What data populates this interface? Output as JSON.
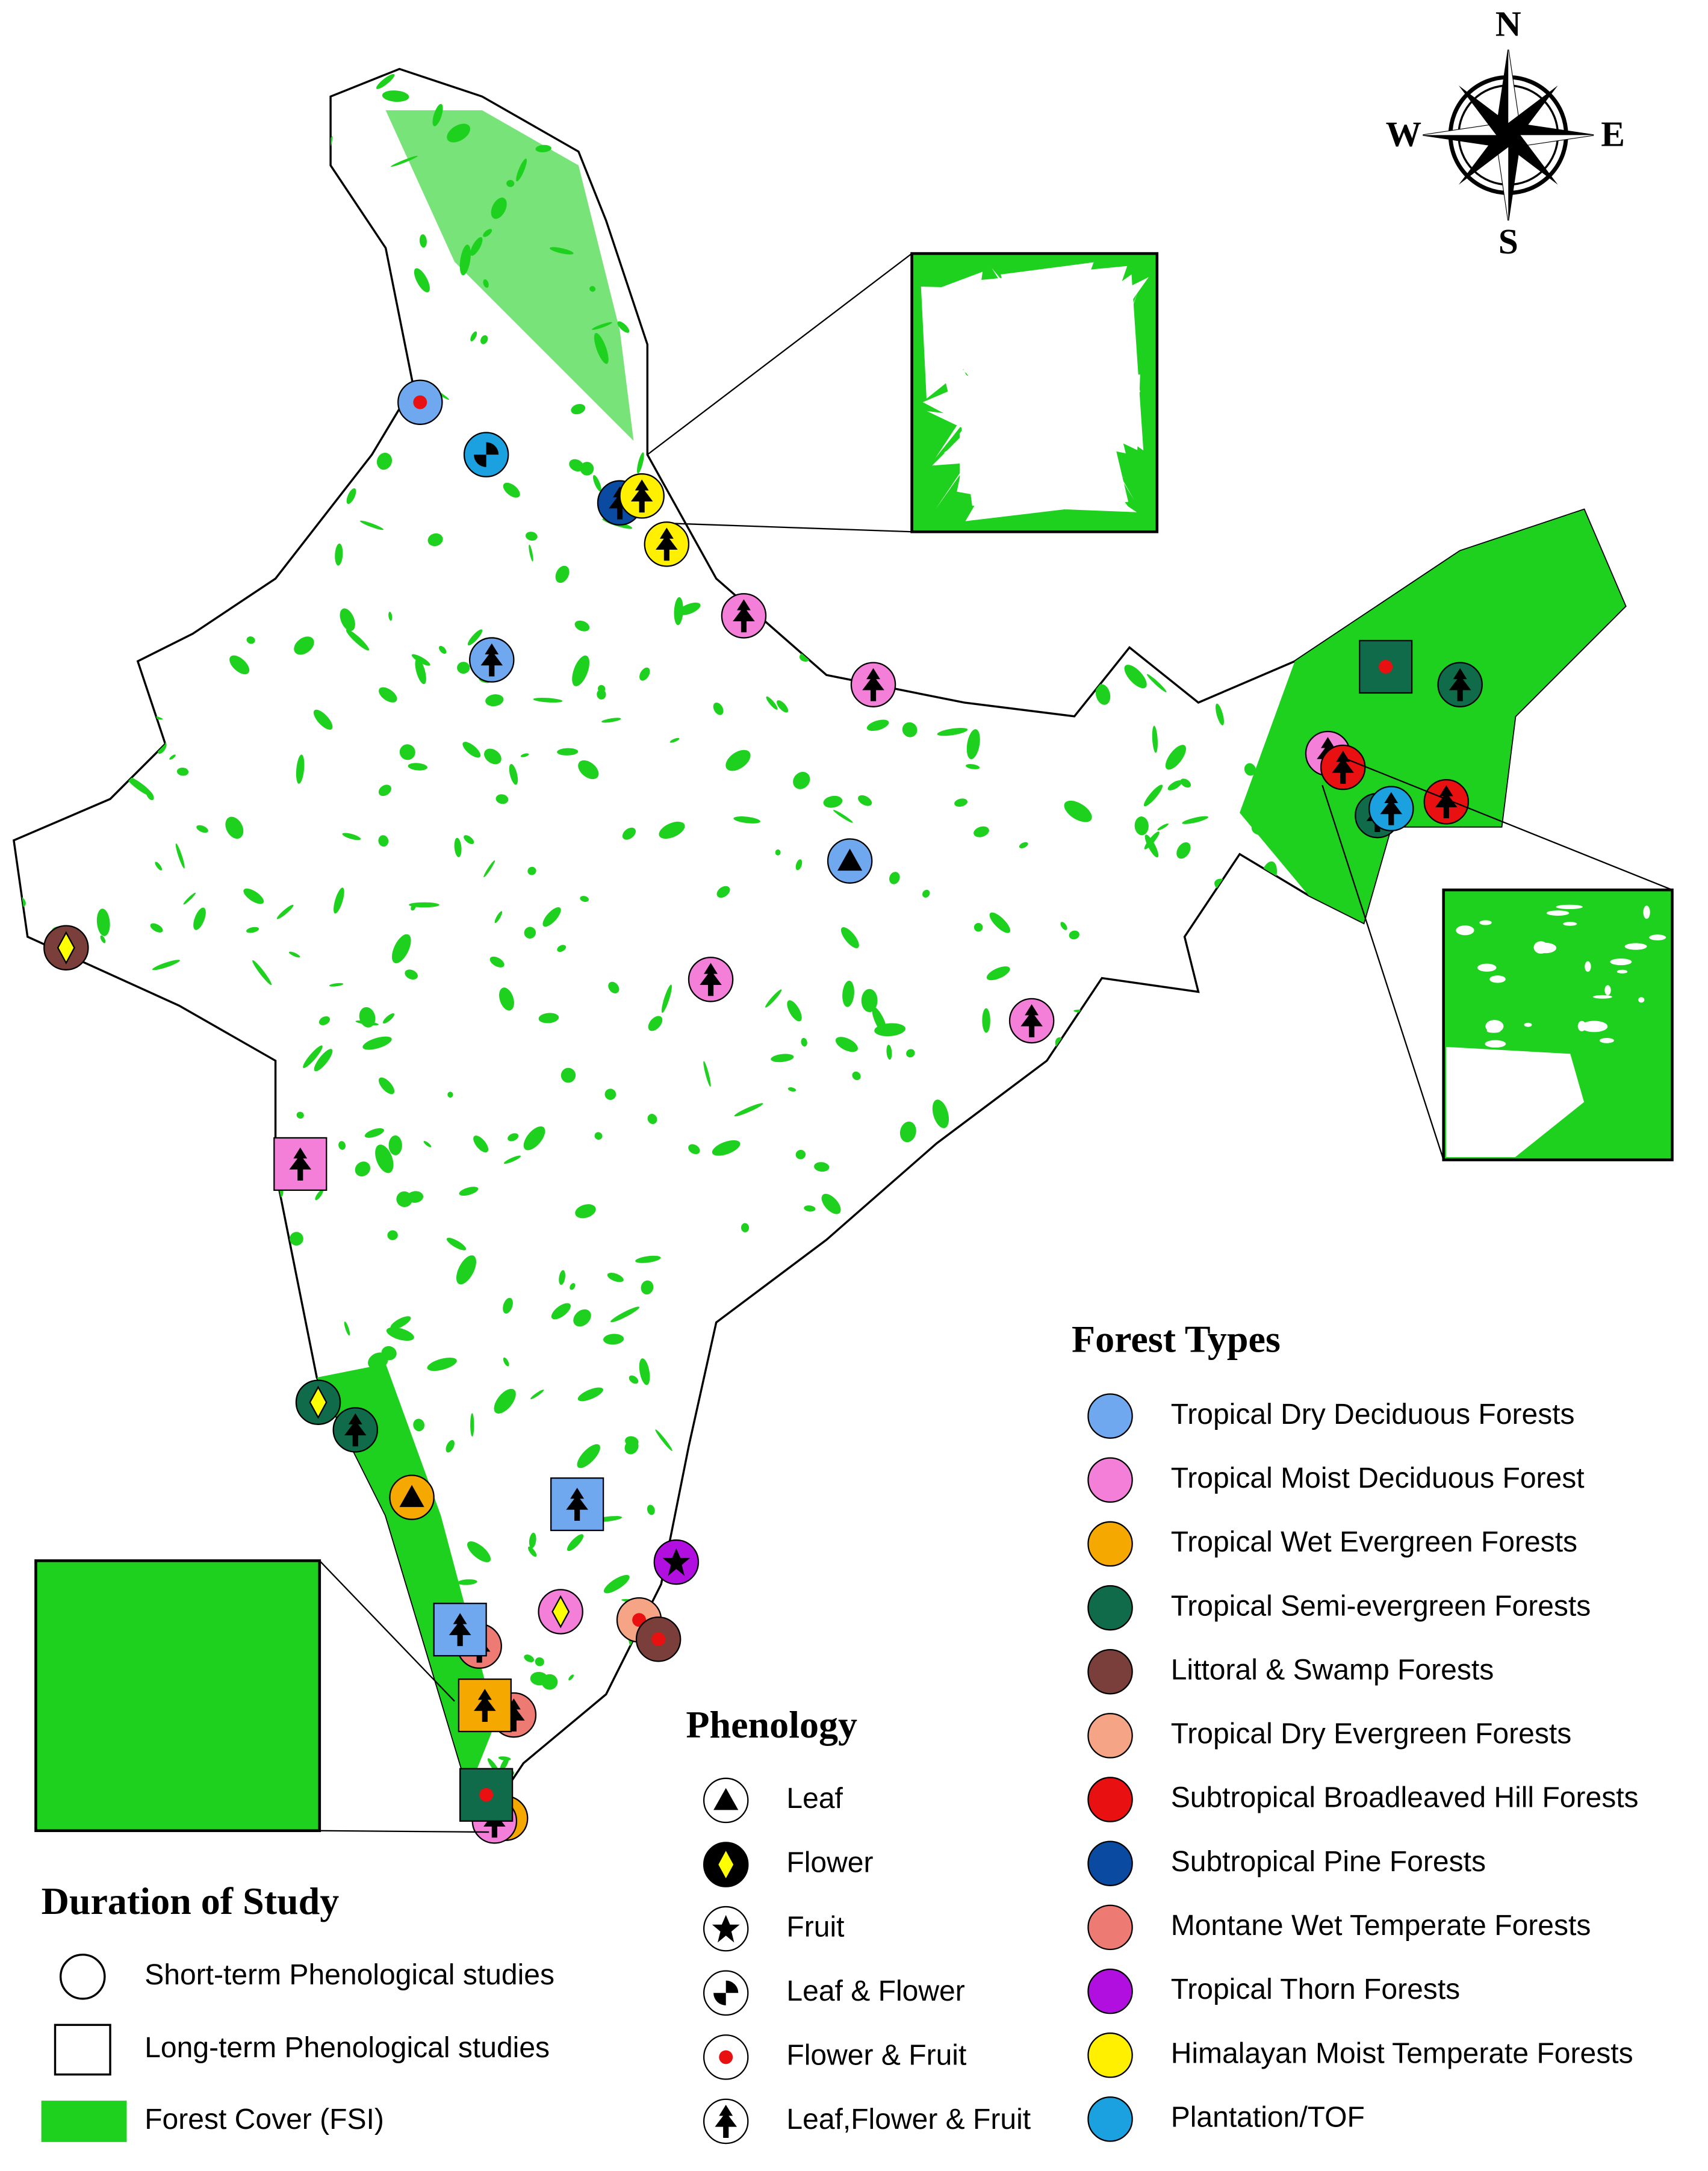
{
  "compass": {
    "n": "N",
    "e": "E",
    "s": "S",
    "w": "W"
  },
  "forest_types": {
    "title": "Forest Types",
    "items": [
      {
        "label": "Tropical Dry Deciduous Forests",
        "color": "#6fa8ef"
      },
      {
        "label": "Tropical Moist Deciduous Forest",
        "color": "#f47fd8"
      },
      {
        "label": "Tropical Wet Evergreen Forests",
        "color": "#f5a800"
      },
      {
        "label": "Tropical Semi-evergreen Forests",
        "color": "#0f6b4a"
      },
      {
        "label": "Littoral & Swamp Forests",
        "color": "#7a3f3a"
      },
      {
        "label": "Tropical Dry Evergreen Forests",
        "color": "#f5a585"
      },
      {
        "label": "Subtropical Broadleaved Hill Forests",
        "color": "#e81010"
      },
      {
        "label": "Subtropical Pine Forests",
        "color": "#0a4aa0"
      },
      {
        "label": "Montane Wet Temperate Forests",
        "color": "#ee7b73"
      },
      {
        "label": "Tropical Thorn Forests",
        "color": "#b00fe0"
      },
      {
        "label": "Himalayan Moist Temperate Forests",
        "color": "#fff000"
      },
      {
        "label": "Plantation/TOF",
        "color": "#1ba0e0"
      }
    ]
  },
  "phenology": {
    "title": "Phenology",
    "items": [
      "Leaf",
      "Flower",
      "Fruit",
      "Leaf & Flower",
      "Flower & Fruit",
      "Leaf,Flower & Fruit"
    ]
  },
  "duration": {
    "title": "Duration of Study",
    "items": [
      "Short-term Phenological studies",
      "Long-term Phenological studies",
      "Forest Cover (FSI)"
    ]
  }
}
